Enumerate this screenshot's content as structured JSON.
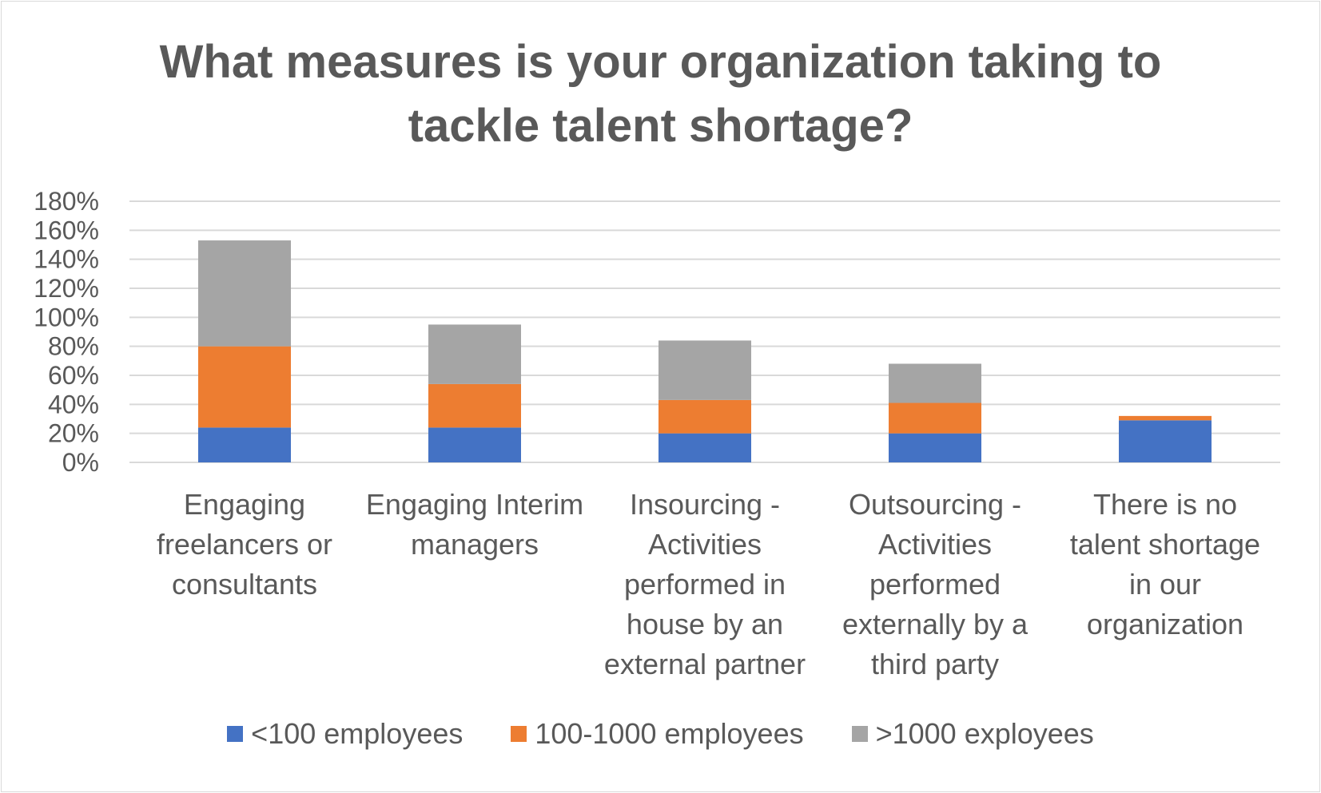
{
  "chart_data": {
    "type": "bar",
    "stacked": true,
    "title": "What measures is your organization taking to tackle talent shortage?",
    "title_lines": [
      "What measures is your organization taking to",
      "tackle talent shortage?"
    ],
    "categories": [
      "Engaging freelancers or consultants",
      "Engaging Interim managers",
      "Insourcing - Activities performed in house by an external partner",
      "Outsourcing - Activities performed externally by a third party",
      "There is no talent shortage in our organization"
    ],
    "category_lines": [
      [
        "Engaging",
        "freelancers or",
        "consultants"
      ],
      [
        "Engaging Interim",
        "managers"
      ],
      [
        "Insourcing -",
        "Activities",
        "performed in",
        "house by an",
        "external partner"
      ],
      [
        "Outsourcing -",
        "Activities",
        "performed",
        "externally by a",
        "third party"
      ],
      [
        "There is no",
        "talent shortage",
        "in our",
        "organization"
      ]
    ],
    "series": [
      {
        "name": "<100 employees",
        "color": "#4472c4",
        "values": [
          24,
          24,
          20,
          20,
          29
        ]
      },
      {
        "name": "100-1000 employees",
        "color": "#ed7d31",
        "values": [
          56,
          30,
          23,
          21,
          3
        ]
      },
      {
        "name": ">1000 exployees",
        "color": "#a5a5a5",
        "values": [
          73,
          41,
          41,
          27,
          0
        ]
      }
    ],
    "ylim": [
      0,
      180
    ],
    "yticks": [
      0,
      20,
      40,
      60,
      80,
      100,
      120,
      140,
      160,
      180
    ],
    "ytick_labels": [
      "0%",
      "20%",
      "40%",
      "60%",
      "80%",
      "100%",
      "120%",
      "140%",
      "160%",
      "180%"
    ],
    "xlabel": "",
    "ylabel": "",
    "grid": true,
    "legend_position": "bottom"
  }
}
